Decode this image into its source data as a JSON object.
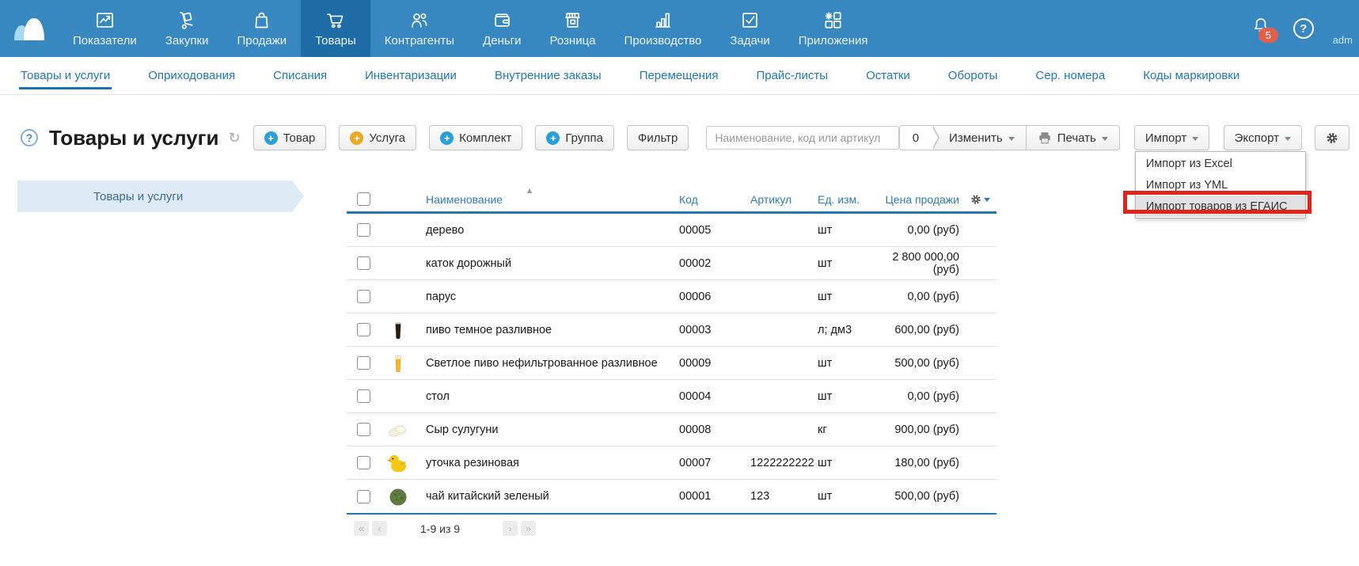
{
  "topnav": {
    "items": [
      {
        "name": "indicators",
        "label": "Показатели",
        "icon": "metrics-icon",
        "active": false
      },
      {
        "name": "purchases",
        "label": "Закупки",
        "icon": "purchases-icon",
        "active": false
      },
      {
        "name": "sales",
        "label": "Продажи",
        "icon": "sales-icon",
        "active": false
      },
      {
        "name": "goods",
        "label": "Товары",
        "icon": "goods-icon",
        "active": true
      },
      {
        "name": "partners",
        "label": "Контрагенты",
        "icon": "partners-icon",
        "active": false
      },
      {
        "name": "money",
        "label": "Деньги",
        "icon": "money-icon",
        "active": false
      },
      {
        "name": "retail",
        "label": "Розница",
        "icon": "retail-icon",
        "active": false
      },
      {
        "name": "production",
        "label": "Производство",
        "icon": "production-icon",
        "active": false
      },
      {
        "name": "tasks",
        "label": "Задачи",
        "icon": "tasks-icon",
        "active": false
      },
      {
        "name": "apps",
        "label": "Приложения",
        "icon": "apps-icon",
        "active": false
      }
    ],
    "notifications_count": "5",
    "user_label": "adm"
  },
  "tabs": {
    "items": [
      "Товары и услуги",
      "Оприходования",
      "Списания",
      "Инвентаризации",
      "Внутренние заказы",
      "Перемещения",
      "Прайс-листы",
      "Остатки",
      "Обороты",
      "Сер. номера",
      "Коды маркировки"
    ],
    "active": "Товары и услуги"
  },
  "toolbar": {
    "page_title": "Товары и услуги",
    "create_buttons": [
      {
        "label": "Товар",
        "plus": "blue"
      },
      {
        "label": "Услуга",
        "plus": "yellow"
      },
      {
        "label": "Комплект",
        "plus": "blue"
      },
      {
        "label": "Группа",
        "plus": "blue"
      },
      {
        "label": "Фильтр",
        "plus": null
      }
    ],
    "search_placeholder": "Наименование, код или артикул",
    "selected_count": "0",
    "edit_label": "Изменить",
    "print_label": "Печать",
    "import_label": "Импорт",
    "export_label": "Экспорт"
  },
  "import_menu": {
    "items": [
      "Импорт из Excel",
      "Импорт из YML",
      "Импорт товаров из ЕГАИС"
    ],
    "highlighted_item": "Импорт товаров из ЕГАИС"
  },
  "sidebar": {
    "items": [
      {
        "label": "Товары и услуги"
      }
    ]
  },
  "table": {
    "columns": [
      "Наименование",
      "Код",
      "Артикул",
      "Ед. изм.",
      "Цена продажи"
    ],
    "sort_column": "Наименование",
    "rows": [
      {
        "name": "дерево",
        "code": "00005",
        "article": "",
        "unit": "шт",
        "price": "0,00 (руб)",
        "thumb": ""
      },
      {
        "name": "каток дорожный",
        "code": "00002",
        "article": "",
        "unit": "шт",
        "price": "2 800 000,00 (руб)",
        "thumb": ""
      },
      {
        "name": "парус",
        "code": "00006",
        "article": "",
        "unit": "шт",
        "price": "0,00 (руб)",
        "thumb": ""
      },
      {
        "name": "пиво темное разливное",
        "code": "00003",
        "article": "",
        "unit": "л; дм3",
        "price": "600,00 (руб)",
        "thumb": "dark-beer"
      },
      {
        "name": "Светлое пиво нефильтрованное разливное",
        "code": "00009",
        "article": "",
        "unit": "шт",
        "price": "500,00 (руб)",
        "thumb": "light-beer"
      },
      {
        "name": "стол",
        "code": "00004",
        "article": "",
        "unit": "шт",
        "price": "0,00 (руб)",
        "thumb": ""
      },
      {
        "name": "Сыр сулугуни",
        "code": "00008",
        "article": "",
        "unit": "кг",
        "price": "900,00 (руб)",
        "thumb": "cheese"
      },
      {
        "name": "уточка резиновая",
        "code": "00007",
        "article": "1222222222",
        "unit": "шт",
        "price": "180,00 (руб)",
        "thumb": "duck"
      },
      {
        "name": "чай китайский зеленый",
        "code": "00001",
        "article": "123",
        "unit": "шт",
        "price": "500,00 (руб)",
        "thumb": "tea"
      }
    ],
    "pagination_text": "1-9 из 9"
  },
  "colors": {
    "topbar": "#3787c1",
    "topbar_active": "#1e6ca6",
    "accent_blue": "#2176bd",
    "badge_red": "#e2604b",
    "header_line": "#2277b5",
    "annotation_red": "#e2231a"
  }
}
